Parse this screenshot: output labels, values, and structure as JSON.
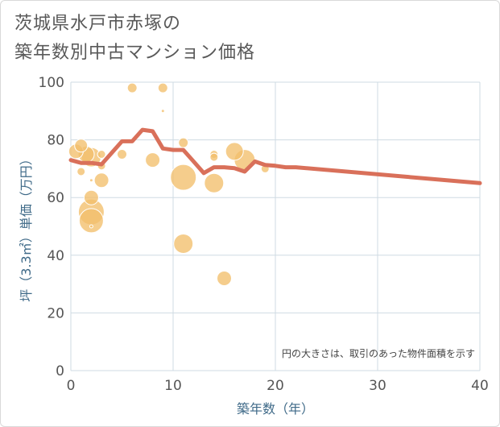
{
  "title_lines": [
    "茨城県水戸市赤塚の",
    "築年数別中古マンション価格"
  ],
  "chart_data": {
    "type": "scatter",
    "title": "茨城県水戸市赤塚の築年数別中古マンション価格",
    "xlabel": "築年数（年）",
    "ylabel": "坪（3.3㎡）単価（万円）",
    "xlim": [
      0,
      40
    ],
    "ylim": [
      0,
      100
    ],
    "x_ticks": [
      0,
      10,
      20,
      30,
      40
    ],
    "y_ticks": [
      0,
      20,
      40,
      60,
      80,
      100
    ],
    "grid": true,
    "note": "円の大きさは、取引のあった物件面積を示す",
    "colors": {
      "bubble": "#f2bf6c",
      "line": "#d9705a",
      "grid": "#cfdbe3"
    },
    "series": [
      {
        "type": "bubble",
        "points": [
          {
            "x": 0.5,
            "y": 76,
            "size": 9
          },
          {
            "x": 1,
            "y": 78,
            "size": 8
          },
          {
            "x": 1,
            "y": 69,
            "size": 5
          },
          {
            "x": 1.5,
            "y": 75,
            "size": 10
          },
          {
            "x": 2,
            "y": 74,
            "size": 12
          },
          {
            "x": 2,
            "y": 66,
            "size": 2
          },
          {
            "x": 2,
            "y": 60,
            "size": 9
          },
          {
            "x": 2,
            "y": 55,
            "size": 16
          },
          {
            "x": 2,
            "y": 52,
            "size": 15
          },
          {
            "x": 2,
            "y": 50,
            "size": 2
          },
          {
            "x": 3,
            "y": 75,
            "size": 5
          },
          {
            "x": 3,
            "y": 71,
            "size": 5
          },
          {
            "x": 3,
            "y": 66,
            "size": 9
          },
          {
            "x": 5,
            "y": 75,
            "size": 6
          },
          {
            "x": 6,
            "y": 98,
            "size": 6
          },
          {
            "x": 8,
            "y": 73,
            "size": 9
          },
          {
            "x": 9,
            "y": 98,
            "size": 6
          },
          {
            "x": 9,
            "y": 90,
            "size": 2
          },
          {
            "x": 11,
            "y": 79,
            "size": 6
          },
          {
            "x": 11,
            "y": 67,
            "size": 16
          },
          {
            "x": 11,
            "y": 44,
            "size": 12
          },
          {
            "x": 14,
            "y": 75,
            "size": 5
          },
          {
            "x": 14,
            "y": 74,
            "size": 5
          },
          {
            "x": 14,
            "y": 65,
            "size": 12
          },
          {
            "x": 15,
            "y": 32,
            "size": 9
          },
          {
            "x": 16,
            "y": 76,
            "size": 11
          },
          {
            "x": 17,
            "y": 73,
            "size": 13
          },
          {
            "x": 19,
            "y": 70,
            "size": 5
          }
        ]
      },
      {
        "type": "line",
        "points": [
          {
            "x": 0,
            "y": 73
          },
          {
            "x": 1,
            "y": 72
          },
          {
            "x": 2,
            "y": 72
          },
          {
            "x": 3,
            "y": 71.5
          },
          {
            "x": 4,
            "y": 75.5
          },
          {
            "x": 5,
            "y": 79.5
          },
          {
            "x": 6,
            "y": 79.5
          },
          {
            "x": 7,
            "y": 83.5
          },
          {
            "x": 8,
            "y": 83
          },
          {
            "x": 9,
            "y": 77
          },
          {
            "x": 10,
            "y": 76.5
          },
          {
            "x": 11,
            "y": 76.5
          },
          {
            "x": 12,
            "y": 72.5
          },
          {
            "x": 13,
            "y": 68.5
          },
          {
            "x": 14,
            "y": 70.5
          },
          {
            "x": 15,
            "y": 70.5
          },
          {
            "x": 16,
            "y": 70.2
          },
          {
            "x": 17,
            "y": 69
          },
          {
            "x": 18,
            "y": 72.5
          },
          {
            "x": 19,
            "y": 71.3
          },
          {
            "x": 20,
            "y": 71
          },
          {
            "x": 21,
            "y": 70.5
          },
          {
            "x": 22,
            "y": 70.5
          },
          {
            "x": 40,
            "y": 65
          }
        ]
      }
    ]
  }
}
